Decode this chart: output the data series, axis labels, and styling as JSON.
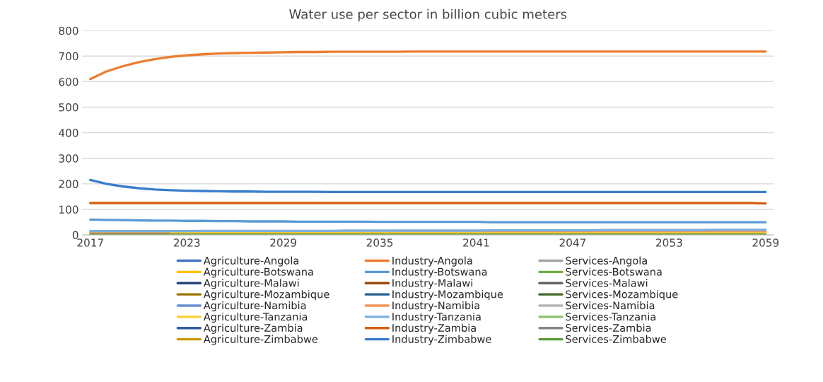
{
  "chart_data": {
    "type": "line",
    "title": "Water use per sector in billion cubic meters",
    "categories": [
      "2017",
      null,
      null,
      null,
      null,
      null,
      "2023",
      null,
      null,
      null,
      null,
      null,
      "2029",
      null,
      null,
      null,
      null,
      null,
      "2035",
      null,
      null,
      null,
      null,
      null,
      "2041",
      null,
      null,
      null,
      null,
      null,
      "2047",
      null,
      null,
      null,
      null,
      null,
      "2053",
      null,
      null,
      null,
      null,
      null,
      "2059"
    ],
    "ylim": [
      0,
      800
    ],
    "yticks": [
      0,
      100,
      200,
      300,
      400,
      500,
      600,
      700,
      800
    ],
    "grid": "y",
    "legend": "bottom",
    "line_style": "solid",
    "marker": "none",
    "series": [
      {
        "name": "Agriculture-Angola",
        "color": "#4472c4",
        "values": [
          null,
          null,
          null,
          null,
          null,
          null,
          null,
          null,
          null,
          null,
          null,
          null,
          null,
          null,
          null,
          null,
          null,
          null,
          null,
          null,
          null,
          null,
          null,
          null,
          null,
          null,
          null,
          null,
          null,
          null,
          null,
          null,
          null,
          null,
          null,
          null,
          null,
          null,
          null,
          null,
          null,
          null,
          null
        ]
      },
      {
        "name": "Industry-Angola",
        "color": "#ed7d31",
        "values": [
          610,
          640,
          660,
          676,
          688,
          697,
          703,
          707,
          710,
          712,
          713,
          714,
          715,
          716,
          716,
          717,
          717,
          717,
          717,
          717,
          718,
          718,
          718,
          718,
          718,
          718,
          718,
          718,
          718,
          718,
          718,
          718,
          718,
          718,
          718,
          718,
          718,
          718,
          718,
          718,
          718,
          718,
          718
        ]
      },
      {
        "name": "Services-Angola",
        "color": "#a5a5a5",
        "values": [
          null,
          null,
          null,
          null,
          null,
          null,
          null,
          null,
          null,
          null,
          null,
          null,
          null,
          null,
          null,
          null,
          null,
          null,
          null,
          null,
          null,
          null,
          null,
          null,
          null,
          null,
          null,
          null,
          null,
          null,
          null,
          null,
          null,
          null,
          null,
          null,
          null,
          null,
          null,
          null,
          null,
          null,
          null
        ]
      },
      {
        "name": "Agriculture-Botswana",
        "color": "#ffc000",
        "values": [
          null,
          null,
          null,
          null,
          null,
          null,
          null,
          null,
          null,
          null,
          null,
          null,
          null,
          null,
          null,
          null,
          null,
          null,
          null,
          null,
          null,
          null,
          null,
          null,
          null,
          null,
          null,
          null,
          null,
          null,
          null,
          null,
          null,
          null,
          null,
          null,
          null,
          null,
          null,
          null,
          null,
          null,
          null
        ]
      },
      {
        "name": "Industry-Botswana",
        "color": "#5b9bd5",
        "values": [
          60,
          59,
          58,
          57,
          56,
          56,
          55,
          55,
          54,
          54,
          53,
          53,
          53,
          52,
          52,
          52,
          52,
          52,
          51,
          51,
          51,
          51,
          51,
          51,
          51,
          50,
          50,
          50,
          50,
          50,
          50,
          50,
          50,
          50,
          50,
          50,
          50,
          50,
          50,
          50,
          50,
          50,
          50
        ]
      },
      {
        "name": "Services-Botswana",
        "color": "#70ad47",
        "values": [
          null,
          null,
          null,
          null,
          null,
          null,
          null,
          null,
          null,
          null,
          null,
          null,
          null,
          null,
          null,
          null,
          null,
          null,
          null,
          null,
          null,
          null,
          null,
          null,
          null,
          null,
          null,
          null,
          null,
          null,
          null,
          null,
          null,
          null,
          null,
          null,
          null,
          null,
          null,
          null,
          null,
          null,
          null
        ]
      },
      {
        "name": "Agriculture-Malawi",
        "color": "#264478",
        "values": [
          null,
          null,
          null,
          null,
          null,
          null,
          null,
          null,
          null,
          null,
          null,
          null,
          null,
          null,
          null,
          null,
          null,
          null,
          null,
          null,
          null,
          null,
          null,
          null,
          null,
          null,
          null,
          null,
          null,
          null,
          null,
          null,
          null,
          null,
          null,
          null,
          null,
          null,
          null,
          null,
          null,
          null,
          null
        ]
      },
      {
        "name": "Industry-Malawi",
        "color": "#9e480e",
        "values": [
          null,
          null,
          null,
          null,
          null,
          null,
          null,
          null,
          null,
          null,
          null,
          null,
          null,
          null,
          null,
          null,
          null,
          null,
          null,
          null,
          null,
          null,
          null,
          null,
          null,
          null,
          null,
          null,
          null,
          null,
          null,
          null,
          null,
          null,
          null,
          null,
          null,
          null,
          null,
          null,
          null,
          null,
          null
        ]
      },
      {
        "name": "Services-Malawi",
        "color": "#636363",
        "values": [
          null,
          null,
          null,
          null,
          null,
          null,
          null,
          null,
          null,
          null,
          null,
          null,
          null,
          null,
          null,
          null,
          null,
          null,
          null,
          null,
          null,
          null,
          null,
          null,
          null,
          null,
          null,
          null,
          null,
          null,
          null,
          null,
          null,
          null,
          null,
          null,
          null,
          null,
          null,
          null,
          null,
          null,
          null
        ]
      },
      {
        "name": "Agriculture-Mozambique",
        "color": "#997300",
        "values": [
          null,
          null,
          null,
          null,
          null,
          null,
          null,
          null,
          null,
          null,
          null,
          null,
          null,
          null,
          null,
          null,
          null,
          null,
          null,
          null,
          null,
          null,
          null,
          null,
          null,
          null,
          null,
          null,
          null,
          null,
          null,
          null,
          null,
          null,
          null,
          null,
          null,
          null,
          null,
          null,
          null,
          null,
          null
        ]
      },
      {
        "name": "Industry-Mozambique",
        "color": "#255e91",
        "values": [
          null,
          null,
          null,
          null,
          null,
          null,
          null,
          null,
          null,
          null,
          null,
          null,
          null,
          null,
          null,
          null,
          null,
          null,
          null,
          null,
          null,
          null,
          null,
          null,
          null,
          null,
          null,
          null,
          null,
          null,
          null,
          null,
          null,
          null,
          null,
          null,
          null,
          null,
          null,
          null,
          null,
          null,
          null
        ]
      },
      {
        "name": "Services-Mozambique",
        "color": "#43682b",
        "values": [
          null,
          null,
          null,
          null,
          null,
          null,
          null,
          null,
          null,
          null,
          null,
          null,
          null,
          null,
          null,
          null,
          null,
          null,
          null,
          null,
          null,
          null,
          null,
          null,
          null,
          null,
          null,
          null,
          null,
          null,
          null,
          null,
          null,
          null,
          null,
          null,
          null,
          null,
          null,
          null,
          null,
          null,
          null
        ]
      },
      {
        "name": "Agriculture-Namibia",
        "color": "#698ed0",
        "values": [
          null,
          null,
          null,
          null,
          null,
          null,
          null,
          null,
          null,
          null,
          null,
          null,
          null,
          null,
          null,
          null,
          null,
          null,
          null,
          null,
          null,
          null,
          null,
          null,
          null,
          null,
          null,
          null,
          null,
          null,
          null,
          null,
          null,
          null,
          null,
          null,
          null,
          null,
          null,
          null,
          null,
          null,
          null
        ]
      },
      {
        "name": "Industry-Namibia",
        "color": "#f1975a",
        "values": [
          8,
          8,
          8,
          8,
          8,
          8,
          8,
          8,
          8,
          8,
          8,
          8,
          9,
          9,
          9,
          9,
          9,
          9,
          9,
          9,
          10,
          10,
          10,
          10,
          10,
          10,
          10,
          10,
          11,
          11,
          11,
          11,
          11,
          11,
          11,
          11,
          12,
          12,
          12,
          12,
          12,
          12,
          12
        ]
      },
      {
        "name": "Services-Namibia",
        "color": "#b7b7b7",
        "values": [
          null,
          null,
          null,
          null,
          null,
          null,
          null,
          null,
          null,
          null,
          null,
          null,
          null,
          null,
          null,
          null,
          null,
          null,
          null,
          null,
          null,
          null,
          null,
          null,
          null,
          null,
          null,
          null,
          null,
          null,
          null,
          null,
          null,
          null,
          null,
          null,
          null,
          null,
          null,
          null,
          null,
          null,
          null
        ]
      },
      {
        "name": "Agriculture-Tanzania",
        "color": "#ffcd33",
        "values": [
          null,
          null,
          null,
          null,
          null,
          6,
          6,
          6,
          6,
          6,
          6,
          6,
          6,
          6,
          6,
          6,
          6,
          6,
          6,
          6,
          6,
          6,
          6,
          6,
          6,
          6,
          6,
          6,
          6,
          6,
          6,
          6,
          6,
          6,
          6,
          6,
          6,
          6,
          6,
          6,
          6,
          6,
          6
        ]
      },
      {
        "name": "Industry-Tanzania",
        "color": "#7cafdd",
        "values": [
          15,
          15,
          15,
          15,
          15,
          15,
          15,
          16,
          16,
          16,
          16,
          16,
          16,
          16,
          16,
          16,
          17,
          17,
          17,
          17,
          17,
          17,
          17,
          17,
          17,
          18,
          18,
          18,
          18,
          18,
          18,
          18,
          19,
          19,
          19,
          19,
          19,
          19,
          19,
          20,
          20,
          20,
          20
        ]
      },
      {
        "name": "Services-Tanzania",
        "color": "#8cc168",
        "values": [
          null,
          null,
          null,
          null,
          null,
          null,
          null,
          null,
          null,
          null,
          null,
          null,
          null,
          null,
          null,
          null,
          null,
          null,
          null,
          null,
          null,
          null,
          null,
          null,
          null,
          null,
          null,
          null,
          null,
          null,
          null,
          null,
          null,
          null,
          null,
          null,
          null,
          null,
          null,
          null,
          null,
          null,
          null
        ]
      },
      {
        "name": "Agriculture-Zambia",
        "color": "#335aa1",
        "values": [
          null,
          null,
          null,
          null,
          null,
          null,
          null,
          null,
          null,
          null,
          null,
          null,
          null,
          null,
          null,
          null,
          null,
          null,
          null,
          null,
          null,
          null,
          null,
          null,
          null,
          null,
          null,
          null,
          null,
          null,
          null,
          null,
          null,
          null,
          null,
          null,
          null,
          null,
          null,
          null,
          null,
          null,
          null
        ]
      },
      {
        "name": "Industry-Zambia",
        "color": "#d26012",
        "values": [
          125,
          125,
          125,
          125,
          125,
          125,
          125,
          125,
          125,
          125,
          125,
          125,
          125,
          125,
          125,
          125,
          125,
          125,
          125,
          125,
          125,
          125,
          125,
          125,
          125,
          125,
          125,
          125,
          125,
          125,
          125,
          125,
          125,
          125,
          125,
          125,
          125,
          125,
          125,
          125,
          125,
          125,
          123
        ]
      },
      {
        "name": "Services-Zambia",
        "color": "#848484",
        "values": [
          null,
          null,
          null,
          null,
          null,
          null,
          null,
          null,
          null,
          null,
          null,
          null,
          null,
          null,
          null,
          null,
          null,
          null,
          null,
          null,
          null,
          null,
          null,
          null,
          null,
          null,
          null,
          null,
          null,
          null,
          null,
          null,
          null,
          null,
          null,
          null,
          null,
          null,
          null,
          null,
          null,
          null,
          null
        ]
      },
      {
        "name": "Agriculture-Zimbabwe",
        "color": "#cc9a00",
        "values": [
          null,
          null,
          null,
          null,
          null,
          null,
          null,
          null,
          null,
          null,
          null,
          null,
          null,
          null,
          null,
          null,
          null,
          null,
          null,
          null,
          null,
          null,
          null,
          null,
          null,
          null,
          null,
          null,
          null,
          null,
          null,
          null,
          null,
          null,
          null,
          null,
          null,
          null,
          null,
          null,
          null,
          null,
          null
        ]
      },
      {
        "name": "Industry-Zimbabwe",
        "color": "#3a7dcc",
        "values": [
          215,
          200,
          190,
          183,
          178,
          175,
          173,
          172,
          171,
          170,
          170,
          169,
          169,
          169,
          169,
          168,
          168,
          168,
          168,
          168,
          168,
          168,
          168,
          168,
          168,
          168,
          168,
          168,
          168,
          168,
          168,
          168,
          168,
          168,
          168,
          168,
          168,
          168,
          168,
          168,
          168,
          168,
          168
        ]
      },
      {
        "name": "Services-Zimbabwe",
        "color": "#5a9a3a",
        "values": [
          1,
          1,
          1,
          1,
          1,
          1,
          1,
          1,
          1,
          1,
          1,
          1,
          1,
          1,
          1,
          1,
          1,
          1,
          1,
          1,
          1,
          1,
          1,
          1,
          1,
          1,
          1,
          1,
          1,
          1,
          1,
          1,
          1,
          1,
          1,
          1,
          1,
          1,
          1,
          1,
          1,
          1,
          1
        ]
      }
    ]
  }
}
